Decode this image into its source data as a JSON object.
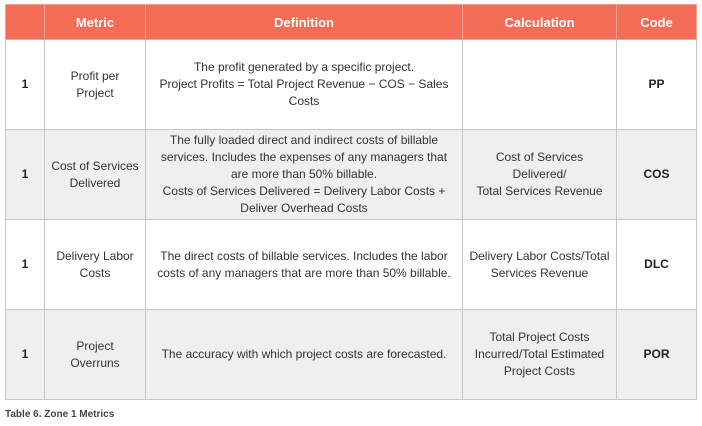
{
  "table": {
    "headers": {
      "number": "",
      "metric": "Metric",
      "definition": "Definition",
      "calculation": "Calculation",
      "code": "Code"
    },
    "rows": [
      {
        "number": "1",
        "metric": "Profit per Project",
        "definition_lines": [
          "The profit generated by a specific project.",
          "Project Profits = Total Project Revenue − COS − Sales Costs"
        ],
        "calculation_lines": [],
        "code": "PP"
      },
      {
        "number": "1",
        "metric_lines": [
          "Cost of Services",
          "Delivered"
        ],
        "definition_lines": [
          "The fully loaded direct and indirect costs of billable",
          "services. Includes the expenses of any managers that",
          "are more than 50% billable.",
          "Costs of Services Delivered = Delivery Labor Costs +",
          "Deliver Overhead Costs"
        ],
        "calculation_lines": [
          "Cost of Services Delivered/",
          "Total Services Revenue"
        ],
        "code": "COS"
      },
      {
        "number": "1",
        "metric_lines": [
          "Delivery Labor",
          "Costs"
        ],
        "definition_lines": [
          "The direct costs of billable services. Includes the labor",
          "costs of any managers that are more than 50% billable."
        ],
        "calculation_lines": [
          "Delivery Labor Costs/Total",
          "Services Revenue"
        ],
        "code": "DLC"
      },
      {
        "number": "1",
        "metric": "Project Overruns",
        "definition_lines": [
          "The accuracy with which project costs are forecasted."
        ],
        "calculation_lines": [
          "Total Project Costs",
          "Incurred/Total Estimated",
          "Project Costs"
        ],
        "code": "POR"
      }
    ]
  },
  "caption": "Table 6. Zone 1 Metrics"
}
